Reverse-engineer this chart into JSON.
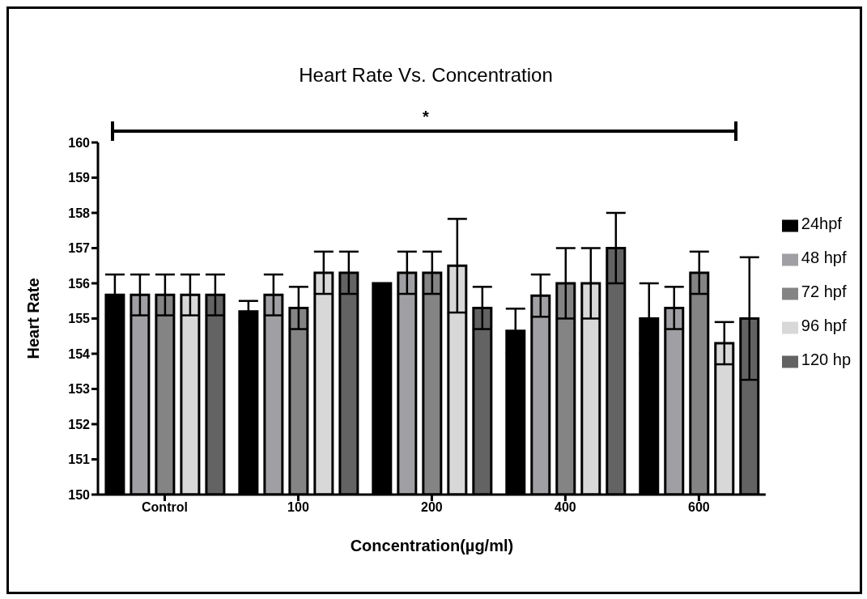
{
  "chart_data": {
    "type": "bar",
    "title": "Heart Rate Vs. Concentration",
    "xlabel": "Concentration(µg/ml)",
    "ylabel": "Heart Rate",
    "categories": [
      "Control",
      "100",
      "200",
      "400",
      "600"
    ],
    "series": [
      {
        "name": "24hpf",
        "color": "#000000",
        "values": [
          155.67,
          155.2,
          156.0,
          154.65,
          155.0
        ],
        "errors": [
          0.58,
          0.3,
          null,
          0.63,
          1.0
        ]
      },
      {
        "name": "48 hpf",
        "color": "#a0a0a4",
        "values": [
          155.67,
          155.67,
          156.3,
          155.65,
          155.3
        ],
        "errors": [
          0.58,
          0.58,
          0.6,
          0.6,
          0.6
        ]
      },
      {
        "name": "72 hpf",
        "color": "#848484",
        "values": [
          155.67,
          155.3,
          156.3,
          156.0,
          156.3
        ],
        "errors": [
          0.58,
          0.6,
          0.6,
          1.0,
          0.6
        ]
      },
      {
        "name": "96 hpf",
        "color": "#d8d8d8",
        "values": [
          155.67,
          156.3,
          156.5,
          156.0,
          154.3
        ],
        "errors": [
          0.58,
          0.6,
          1.33,
          1.0,
          0.6
        ]
      },
      {
        "name": "120 hp",
        "color": "#636363",
        "values": [
          155.67,
          156.3,
          155.3,
          157.0,
          155.0
        ],
        "errors": [
          0.58,
          0.6,
          0.6,
          1.0,
          1.74
        ]
      }
    ],
    "ylim": [
      150,
      160
    ],
    "yticks": [
      150,
      151,
      152,
      153,
      154,
      155,
      156,
      157,
      158,
      159,
      160
    ],
    "grid": false,
    "legend": "right",
    "annotations": [
      "*"
    ]
  }
}
